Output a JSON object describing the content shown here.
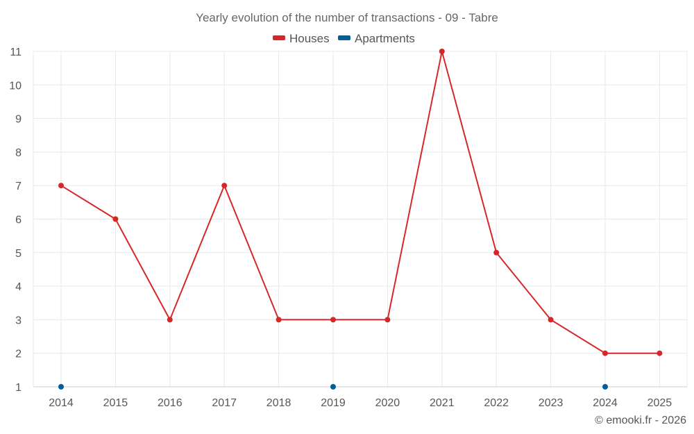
{
  "chart_data": {
    "type": "line",
    "title": "Yearly evolution of the number of transactions - 09 - Tabre",
    "xlabel": "",
    "ylabel": "",
    "categories": [
      "2014",
      "2015",
      "2016",
      "2017",
      "2018",
      "2019",
      "2020",
      "2021",
      "2022",
      "2023",
      "2024",
      "2025"
    ],
    "ylim": [
      1,
      11
    ],
    "yticks": [
      "1",
      "2",
      "3",
      "4",
      "5",
      "6",
      "7",
      "8",
      "9",
      "10",
      "11"
    ],
    "grid": true,
    "legend_position": "top-center",
    "series": [
      {
        "name": "Houses",
        "color": "#d62728",
        "values": [
          7,
          6,
          3,
          7,
          3,
          3,
          3,
          11,
          5,
          3,
          2,
          2
        ]
      },
      {
        "name": "Apartments",
        "color": "#005f99",
        "values": [
          1,
          null,
          null,
          null,
          null,
          1,
          null,
          null,
          null,
          null,
          1,
          null
        ]
      }
    ]
  },
  "credit": "© emooki.fr - 2026"
}
